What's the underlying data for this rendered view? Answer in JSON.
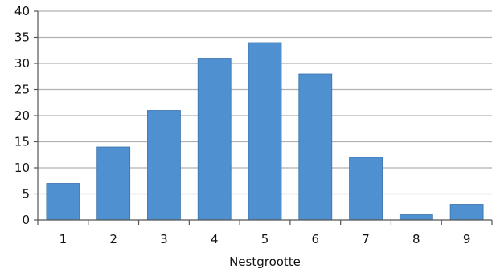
{
  "chart_data": {
    "type": "bar",
    "categories": [
      "1",
      "2",
      "3",
      "4",
      "5",
      "6",
      "7",
      "8",
      "9"
    ],
    "values": [
      7,
      14,
      21,
      31,
      34,
      28,
      12,
      1,
      3
    ],
    "title": "",
    "xlabel": "Nestgrootte",
    "ylabel": "",
    "ylim": [
      0,
      40
    ],
    "yticks": [
      0,
      5,
      10,
      15,
      20,
      25,
      30,
      35,
      40
    ],
    "grid": true,
    "bar_color": "#4f90d0",
    "bar_edge_color": "#3a72ad",
    "grid_color": "#b0b0b0"
  }
}
